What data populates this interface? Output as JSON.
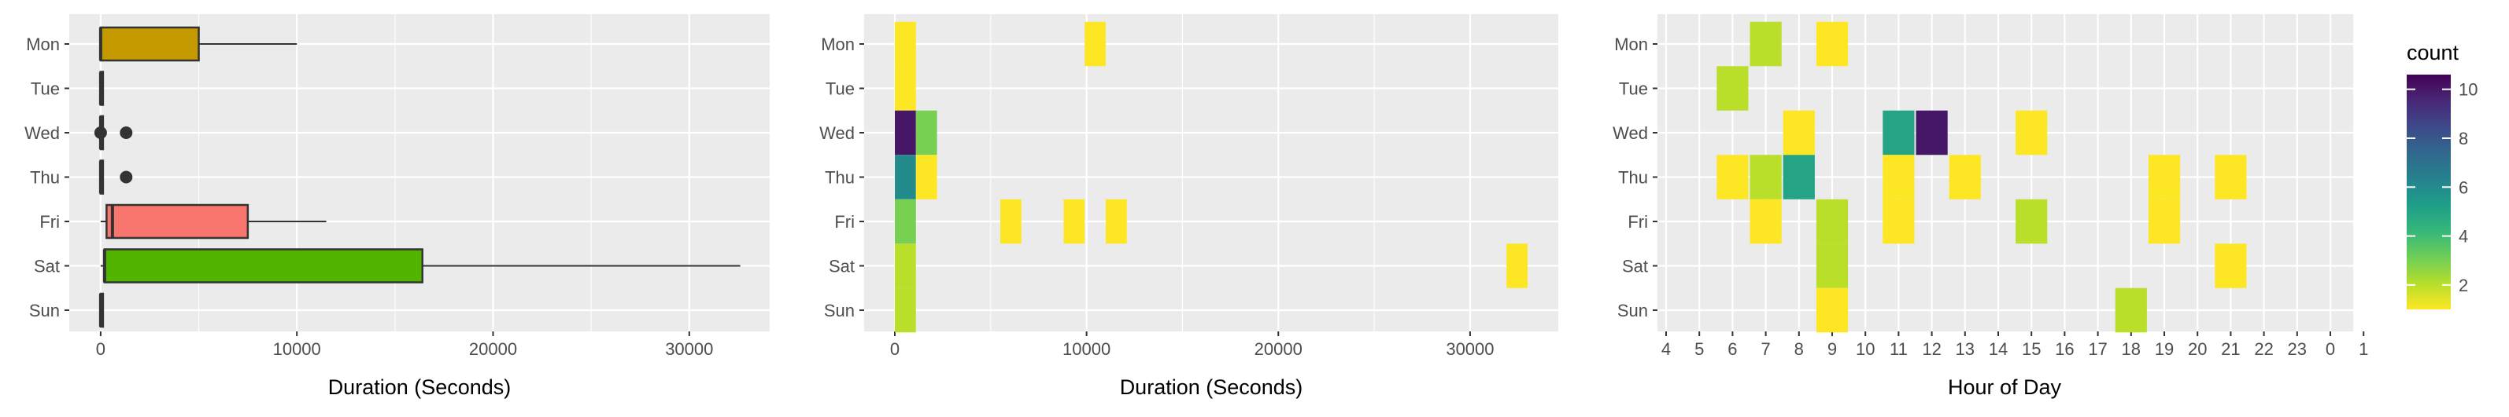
{
  "chart_data": [
    {
      "type": "box",
      "xlabel": "Duration (Seconds)",
      "ylabel": "",
      "xlim": [
        -1600,
        34100
      ],
      "xticks": [
        0,
        10000,
        20000,
        30000
      ],
      "categories": [
        "Mon",
        "Tue",
        "Wed",
        "Thu",
        "Fri",
        "Sat",
        "Sun"
      ],
      "boxes": [
        {
          "day": "Mon",
          "min": 0,
          "q1": 0,
          "median": 0,
          "q3": 5000,
          "max": 10000,
          "fill": "#c49a00",
          "outliers": []
        },
        {
          "day": "Tue",
          "min": 0,
          "q1": 0,
          "median": 0,
          "q3": 0,
          "max": 0,
          "fill": "#53b400",
          "outliers": []
        },
        {
          "day": "Wed",
          "min": 0,
          "q1": 0,
          "median": 0,
          "q3": 0,
          "max": 0,
          "fill": "#00c094",
          "outliers": [
            0,
            1300
          ]
        },
        {
          "day": "Thu",
          "min": 0,
          "q1": 0,
          "median": 0,
          "q3": 0,
          "max": 0,
          "fill": "#00b6eb",
          "outliers": [
            1300
          ]
        },
        {
          "day": "Fri",
          "min": 0,
          "q1": 300,
          "median": 600,
          "q3": 7500,
          "max": 11500,
          "fill": "#f8766d",
          "outliers": []
        },
        {
          "day": "Sat",
          "min": 0,
          "q1": 200,
          "median": 200,
          "q3": 16400,
          "max": 32600,
          "fill": "#53b400",
          "outliers": []
        },
        {
          "day": "Sun",
          "min": 0,
          "q1": 0,
          "median": 0,
          "q3": 0,
          "max": 0,
          "fill": "#a58aff",
          "outliers": []
        }
      ],
      "grid": true
    },
    {
      "type": "heatmap",
      "xlabel": "Duration (Seconds)",
      "ylabel": "",
      "xlim": [
        -1600,
        34600
      ],
      "xticks": [
        0,
        10000,
        20000,
        30000
      ],
      "categories": [
        "Mon",
        "Tue",
        "Wed",
        "Thu",
        "Fri",
        "Sat",
        "Sun"
      ],
      "bin_width": 1100,
      "cells": [
        {
          "day": "Mon",
          "x0": 0,
          "count": 1
        },
        {
          "day": "Mon",
          "x0": 9900,
          "count": 1
        },
        {
          "day": "Tue",
          "x0": 0,
          "count": 1
        },
        {
          "day": "Wed",
          "x0": 0,
          "count": 10
        },
        {
          "day": "Wed",
          "x0": 1100,
          "count": 3
        },
        {
          "day": "Thu",
          "x0": 0,
          "count": 6
        },
        {
          "day": "Thu",
          "x0": 1100,
          "count": 1
        },
        {
          "day": "Fri",
          "x0": 0,
          "count": 3
        },
        {
          "day": "Fri",
          "x0": 5500,
          "count": 1
        },
        {
          "day": "Fri",
          "x0": 8800,
          "count": 1
        },
        {
          "day": "Fri",
          "x0": 11000,
          "count": 1
        },
        {
          "day": "Sat",
          "x0": 0,
          "count": 2
        },
        {
          "day": "Sat",
          "x0": 31900,
          "count": 1
        },
        {
          "day": "Sun",
          "x0": 0,
          "count": 2
        }
      ],
      "grid": true
    },
    {
      "type": "heatmap",
      "xlabel": "Hour of Day",
      "ylabel": "",
      "categories": [
        "Mon",
        "Tue",
        "Wed",
        "Thu",
        "Fri",
        "Sat",
        "Sun"
      ],
      "x_categories": [
        "4",
        "5",
        "6",
        "7",
        "8",
        "9",
        "10",
        "11",
        "12",
        "13",
        "14",
        "15",
        "16",
        "17",
        "18",
        "19",
        "20",
        "21",
        "22",
        "23",
        "0",
        "1"
      ],
      "cells": [
        {
          "day": "Mon",
          "hour": "7",
          "count": 2
        },
        {
          "day": "Mon",
          "hour": "9",
          "count": 1
        },
        {
          "day": "Tue",
          "hour": "6",
          "count": 2
        },
        {
          "day": "Wed",
          "hour": "8",
          "count": 1
        },
        {
          "day": "Wed",
          "hour": "11",
          "count": 5
        },
        {
          "day": "Wed",
          "hour": "12",
          "count": 10
        },
        {
          "day": "Wed",
          "hour": "15",
          "count": 1
        },
        {
          "day": "Thu",
          "hour": "6",
          "count": 1
        },
        {
          "day": "Thu",
          "hour": "7",
          "count": 2
        },
        {
          "day": "Thu",
          "hour": "8",
          "count": 5
        },
        {
          "day": "Thu",
          "hour": "11",
          "count": 1
        },
        {
          "day": "Thu",
          "hour": "13",
          "count": 1
        },
        {
          "day": "Thu",
          "hour": "19",
          "count": 1
        },
        {
          "day": "Thu",
          "hour": "21",
          "count": 1
        },
        {
          "day": "Fri",
          "hour": "7",
          "count": 1
        },
        {
          "day": "Fri",
          "hour": "9",
          "count": 2
        },
        {
          "day": "Fri",
          "hour": "11",
          "count": 1
        },
        {
          "day": "Fri",
          "hour": "15",
          "count": 2
        },
        {
          "day": "Fri",
          "hour": "19",
          "count": 1
        },
        {
          "day": "Sat",
          "hour": "9",
          "count": 2
        },
        {
          "day": "Sat",
          "hour": "21",
          "count": 1
        },
        {
          "day": "Sun",
          "hour": "9",
          "count": 1
        },
        {
          "day": "Sun",
          "hour": "18",
          "count": 2
        }
      ],
      "grid": true
    }
  ],
  "legend": {
    "title": "count",
    "range": [
      1,
      10.6
    ],
    "breaks": [
      2,
      4,
      6,
      8,
      10
    ],
    "labels": [
      "2",
      "4",
      "6",
      "8",
      "10"
    ],
    "placement": "right",
    "palette": "viridis"
  },
  "colors": {
    "panel_background": "#ebebeb",
    "grid_major": "#ffffff",
    "box_outline": "#333333",
    "outlier": "#333333",
    "viridis_stops": [
      "#fde725",
      "#b5de2b",
      "#6ece58",
      "#35b779",
      "#1f9e89",
      "#26828e",
      "#31688e",
      "#3e4989",
      "#482878",
      "#440154"
    ]
  }
}
